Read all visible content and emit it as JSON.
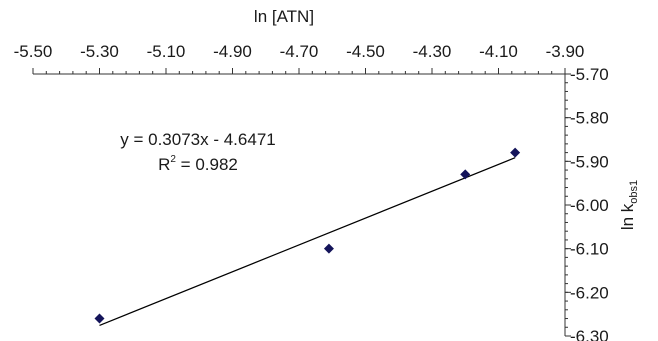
{
  "chart_data": {
    "type": "scatter",
    "xlabel": "ln [ATN]",
    "ylabel_main": "ln k",
    "ylabel_sub": "obs1",
    "xlim": [
      -5.5,
      -3.9
    ],
    "ylim": [
      -6.3,
      -5.7
    ],
    "x_ticks": [
      "-5.50",
      "-5.30",
      "-5.10",
      "-4.90",
      "-4.70",
      "-4.50",
      "-4.30",
      "-4.10",
      "-3.90"
    ],
    "x_tick_values": [
      -5.5,
      -5.3,
      -5.1,
      -4.9,
      -4.7,
      -4.5,
      -4.3,
      -4.1,
      -3.9
    ],
    "y_ticks": [
      "-5.70",
      "-5.80",
      "-5.90",
      "-6.00",
      "-6.10",
      "-6.20",
      "-6.30"
    ],
    "y_tick_values": [
      -5.7,
      -5.8,
      -5.9,
      -6.0,
      -6.1,
      -6.2,
      -6.3
    ],
    "x_axis_position": "top",
    "y_axis_position": "right",
    "grid": false,
    "points": [
      {
        "x": -5.3,
        "y": -6.26
      },
      {
        "x": -4.61,
        "y": -6.1
      },
      {
        "x": -4.2,
        "y": -5.93
      },
      {
        "x": -4.05,
        "y": -5.88
      }
    ],
    "trendline": {
      "slope": 0.3073,
      "intercept": -4.6471,
      "x_start": -5.3,
      "x_end": -4.05
    },
    "equation_text": "y = 0.3073x - 4.6471",
    "r2_label": "R",
    "r2_exponent": "2",
    "r2_value_text": " = 0.982",
    "marker_color": "#14145a",
    "line_color": "#000000"
  }
}
